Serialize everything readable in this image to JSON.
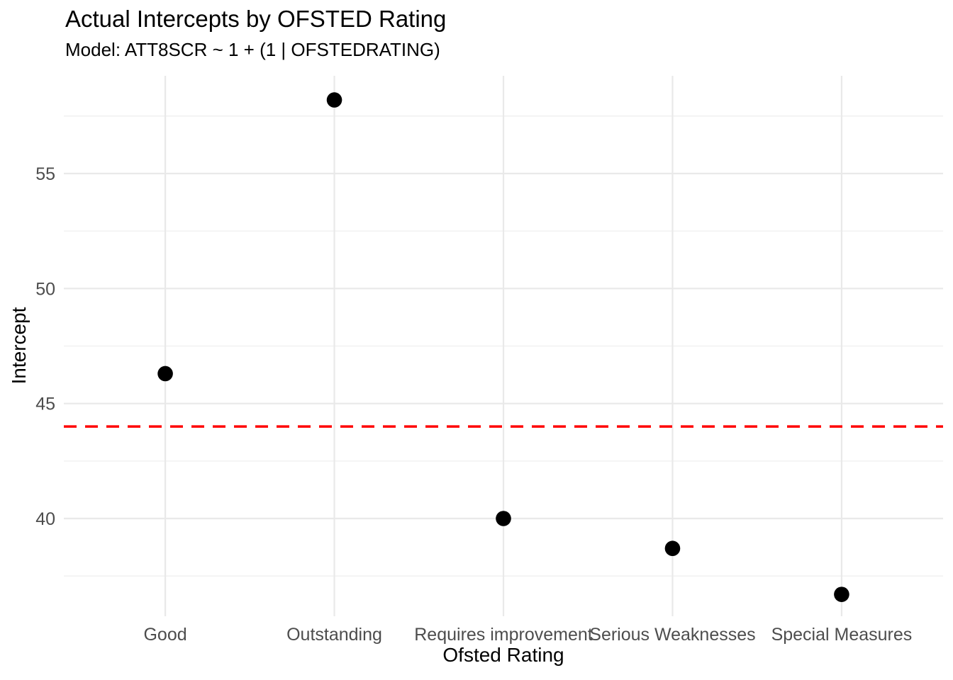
{
  "chart_data": {
    "type": "scatter",
    "title": "Actual Intercepts by OFSTED Rating",
    "subtitle": "Model: ATT8SCR ~ 1 + (1 | OFSTEDRATING)",
    "xlabel": "Ofsted Rating",
    "ylabel": "Intercept",
    "categories": [
      "Good",
      "Outstanding",
      "Requires improvement",
      "Serious Weaknesses",
      "Special Measures"
    ],
    "values": [
      46.3,
      58.2,
      40.0,
      38.7,
      36.7
    ],
    "reference_line": {
      "value": 44.0,
      "color": "#FF0000",
      "style": "dashed"
    },
    "ylim": [
      35.75,
      59.25
    ],
    "yticks": [
      40,
      45,
      50,
      55
    ],
    "yticks_minor": [
      37.5,
      42.5,
      47.5,
      52.5,
      57.5
    ],
    "grid": true,
    "legend": "none",
    "colors": {
      "point": "#000000",
      "grid_major": "#E9E9E9",
      "grid_minor": "#EFEFEF",
      "axis_text": "#4D4D4D",
      "title_text": "#000000",
      "background": "#FFFFFF"
    }
  }
}
